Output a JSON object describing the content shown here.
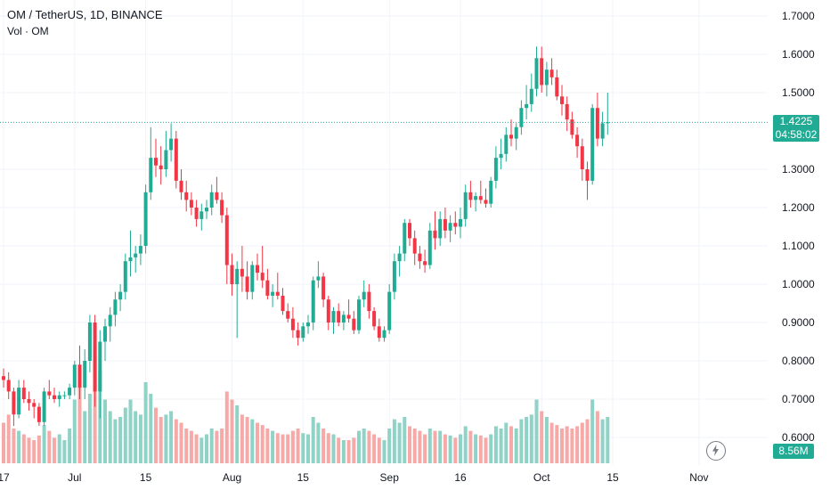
{
  "header": {
    "title": "OM / TetherUS, 1D, BINANCE",
    "volume_label": "Vol · OM"
  },
  "badges": {
    "last_price": "1.4225",
    "countdown": "04:58:02",
    "volume": "8.56M"
  },
  "colors": {
    "up": "#22ab94",
    "down": "#f23645",
    "vol_up": "#8fd2c6",
    "vol_down": "#f7a9a7"
  },
  "icons": {
    "replay": "lightning-bolt-icon"
  },
  "chart_data": {
    "type": "candlestick",
    "title": "OM / TetherUS, 1D, BINANCE",
    "ylim": [
      0.56,
      1.73
    ],
    "last_price": 1.4225,
    "y_ticks": [
      {
        "value": 1.7,
        "label": "1.7000"
      },
      {
        "value": 1.6,
        "label": "1.6000"
      },
      {
        "value": 1.5,
        "label": "1.5000"
      },
      {
        "value": 1.3,
        "label": "1.3000"
      },
      {
        "value": 1.2,
        "label": "1.2000"
      },
      {
        "value": 1.1,
        "label": "1.1000"
      },
      {
        "value": 1.0,
        "label": "1.0000"
      },
      {
        "value": 0.9,
        "label": "0.9000"
      },
      {
        "value": 0.8,
        "label": "0.8000"
      },
      {
        "value": 0.7,
        "label": "0.7000"
      },
      {
        "value": 0.6,
        "label": "0.6000"
      }
    ],
    "x_ticks": [
      {
        "index": 0,
        "label": "17"
      },
      {
        "index": 14,
        "label": "Jul"
      },
      {
        "index": 28,
        "label": "15"
      },
      {
        "index": 45,
        "label": "Aug"
      },
      {
        "index": 59,
        "label": "15"
      },
      {
        "index": 76,
        "label": "Sep"
      },
      {
        "index": 90,
        "label": "16"
      },
      {
        "index": 106,
        "label": "Oct"
      },
      {
        "index": 120,
        "label": "15"
      },
      {
        "index": 137,
        "label": "Nov"
      }
    ],
    "candles": [
      [
        0.76,
        0.78,
        0.73,
        0.75
      ],
      [
        0.75,
        0.77,
        0.7,
        0.72
      ],
      [
        0.72,
        0.73,
        0.63,
        0.66
      ],
      [
        0.66,
        0.75,
        0.65,
        0.73
      ],
      [
        0.73,
        0.75,
        0.69,
        0.7
      ],
      [
        0.7,
        0.72,
        0.67,
        0.69
      ],
      [
        0.69,
        0.7,
        0.65,
        0.68
      ],
      [
        0.68,
        0.69,
        0.63,
        0.64
      ],
      [
        0.64,
        0.73,
        0.63,
        0.72
      ],
      [
        0.72,
        0.75,
        0.7,
        0.71
      ],
      [
        0.71,
        0.73,
        0.69,
        0.7
      ],
      [
        0.7,
        0.72,
        0.68,
        0.71
      ],
      [
        0.71,
        0.72,
        0.7,
        0.71
      ],
      [
        0.71,
        0.74,
        0.7,
        0.73
      ],
      [
        0.73,
        0.8,
        0.71,
        0.79
      ],
      [
        0.79,
        0.84,
        0.7,
        0.73
      ],
      [
        0.73,
        0.83,
        0.7,
        0.8
      ],
      [
        0.8,
        0.92,
        0.77,
        0.9
      ],
      [
        0.9,
        0.92,
        0.68,
        0.72
      ],
      [
        0.72,
        0.88,
        0.65,
        0.85
      ],
      [
        0.85,
        0.91,
        0.8,
        0.89
      ],
      [
        0.89,
        0.94,
        0.85,
        0.92
      ],
      [
        0.92,
        0.98,
        0.89,
        0.96
      ],
      [
        0.96,
        1.0,
        0.93,
        0.98
      ],
      [
        0.98,
        1.08,
        0.96,
        1.06
      ],
      [
        1.06,
        1.14,
        1.02,
        1.07
      ],
      [
        1.07,
        1.1,
        1.03,
        1.08
      ],
      [
        1.08,
        1.13,
        1.05,
        1.1
      ],
      [
        1.1,
        1.26,
        1.08,
        1.24
      ],
      [
        1.24,
        1.41,
        1.22,
        1.33
      ],
      [
        1.33,
        1.38,
        1.28,
        1.31
      ],
      [
        1.31,
        1.36,
        1.26,
        1.3
      ],
      [
        1.3,
        1.4,
        1.28,
        1.35
      ],
      [
        1.35,
        1.42,
        1.32,
        1.38
      ],
      [
        1.38,
        1.4,
        1.25,
        1.27
      ],
      [
        1.27,
        1.3,
        1.22,
        1.24
      ],
      [
        1.24,
        1.27,
        1.19,
        1.22
      ],
      [
        1.22,
        1.24,
        1.18,
        1.2
      ],
      [
        1.2,
        1.22,
        1.15,
        1.17
      ],
      [
        1.17,
        1.21,
        1.14,
        1.19
      ],
      [
        1.19,
        1.22,
        1.17,
        1.2
      ],
      [
        1.2,
        1.26,
        1.18,
        1.24
      ],
      [
        1.24,
        1.28,
        1.21,
        1.22
      ],
      [
        1.22,
        1.24,
        1.16,
        1.18
      ],
      [
        1.18,
        1.2,
        1.0,
        1.05
      ],
      [
        1.05,
        1.08,
        0.97,
        1.0
      ],
      [
        1.0,
        1.06,
        0.86,
        1.04
      ],
      [
        1.04,
        1.1,
        0.98,
        1.02
      ],
      [
        1.02,
        1.06,
        0.96,
        0.98
      ],
      [
        0.98,
        1.06,
        0.96,
        1.05
      ],
      [
        1.05,
        1.08,
        1.01,
        1.03
      ],
      [
        1.03,
        1.1,
        0.99,
        1.01
      ],
      [
        1.01,
        1.04,
        0.96,
        0.97
      ],
      [
        0.97,
        1.0,
        0.94,
        0.98
      ],
      [
        0.98,
        1.03,
        0.96,
        0.97
      ],
      [
        0.97,
        0.99,
        0.92,
        0.93
      ],
      [
        0.93,
        0.95,
        0.9,
        0.91
      ],
      [
        0.91,
        0.94,
        0.86,
        0.88
      ],
      [
        0.88,
        0.9,
        0.84,
        0.86
      ],
      [
        0.86,
        0.9,
        0.85,
        0.89
      ],
      [
        0.89,
        0.92,
        0.87,
        0.9
      ],
      [
        0.9,
        1.02,
        0.88,
        1.01
      ],
      [
        1.01,
        1.06,
        0.99,
        1.02
      ],
      [
        1.02,
        1.03,
        0.94,
        0.96
      ],
      [
        0.96,
        0.97,
        0.88,
        0.9
      ],
      [
        0.9,
        0.94,
        0.87,
        0.93
      ],
      [
        0.93,
        0.95,
        0.89,
        0.9
      ],
      [
        0.9,
        0.93,
        0.88,
        0.92
      ],
      [
        0.92,
        0.96,
        0.9,
        0.91
      ],
      [
        0.91,
        0.93,
        0.87,
        0.88
      ],
      [
        0.88,
        0.97,
        0.87,
        0.96
      ],
      [
        0.96,
        1.01,
        0.94,
        0.98
      ],
      [
        0.98,
        1.0,
        0.91,
        0.93
      ],
      [
        0.93,
        0.94,
        0.88,
        0.89
      ],
      [
        0.89,
        0.91,
        0.85,
        0.86
      ],
      [
        0.86,
        0.89,
        0.85,
        0.88
      ],
      [
        0.88,
        1.0,
        0.87,
        0.98
      ],
      [
        0.98,
        1.08,
        0.96,
        1.06
      ],
      [
        1.06,
        1.1,
        1.02,
        1.08
      ],
      [
        1.08,
        1.17,
        1.06,
        1.16
      ],
      [
        1.16,
        1.17,
        1.1,
        1.12
      ],
      [
        1.12,
        1.14,
        1.05,
        1.08
      ],
      [
        1.08,
        1.1,
        1.04,
        1.06
      ],
      [
        1.06,
        1.09,
        1.03,
        1.05
      ],
      [
        1.05,
        1.16,
        1.04,
        1.14
      ],
      [
        1.14,
        1.19,
        1.09,
        1.12
      ],
      [
        1.12,
        1.19,
        1.1,
        1.17
      ],
      [
        1.17,
        1.2,
        1.12,
        1.14
      ],
      [
        1.14,
        1.18,
        1.11,
        1.16
      ],
      [
        1.16,
        1.19,
        1.13,
        1.15
      ],
      [
        1.15,
        1.2,
        1.12,
        1.17
      ],
      [
        1.17,
        1.26,
        1.15,
        1.24
      ],
      [
        1.24,
        1.27,
        1.2,
        1.22
      ],
      [
        1.22,
        1.24,
        1.19,
        1.23
      ],
      [
        1.23,
        1.27,
        1.21,
        1.22
      ],
      [
        1.22,
        1.25,
        1.2,
        1.21
      ],
      [
        1.21,
        1.28,
        1.2,
        1.27
      ],
      [
        1.27,
        1.36,
        1.25,
        1.33
      ],
      [
        1.33,
        1.38,
        1.3,
        1.34
      ],
      [
        1.34,
        1.41,
        1.32,
        1.39
      ],
      [
        1.39,
        1.43,
        1.36,
        1.38
      ],
      [
        1.38,
        1.42,
        1.35,
        1.41
      ],
      [
        1.41,
        1.48,
        1.39,
        1.46
      ],
      [
        1.46,
        1.52,
        1.43,
        1.47
      ],
      [
        1.47,
        1.55,
        1.45,
        1.51
      ],
      [
        1.51,
        1.62,
        1.49,
        1.59
      ],
      [
        1.59,
        1.62,
        1.5,
        1.52
      ],
      [
        1.52,
        1.58,
        1.49,
        1.56
      ],
      [
        1.56,
        1.59,
        1.52,
        1.54
      ],
      [
        1.54,
        1.56,
        1.48,
        1.49
      ],
      [
        1.49,
        1.52,
        1.44,
        1.47
      ],
      [
        1.47,
        1.49,
        1.4,
        1.43
      ],
      [
        1.43,
        1.45,
        1.38,
        1.39
      ],
      [
        1.39,
        1.41,
        1.33,
        1.36
      ],
      [
        1.36,
        1.38,
        1.27,
        1.3
      ],
      [
        1.3,
        1.32,
        1.22,
        1.27
      ],
      [
        1.27,
        1.47,
        1.26,
        1.46
      ],
      [
        1.46,
        1.5,
        1.36,
        1.38
      ],
      [
        1.38,
        1.45,
        1.36,
        1.42
      ],
      [
        1.42,
        1.5,
        1.39,
        1.4225
      ]
    ],
    "volume": [
      0.35,
      0.42,
      0.3,
      0.28,
      0.25,
      0.22,
      0.2,
      0.24,
      0.33,
      0.28,
      0.22,
      0.25,
      0.2,
      0.3,
      0.55,
      0.7,
      0.45,
      0.6,
      1.0,
      0.8,
      0.55,
      0.45,
      0.38,
      0.4,
      0.48,
      0.55,
      0.45,
      0.42,
      0.7,
      0.6,
      0.48,
      0.4,
      0.42,
      0.45,
      0.38,
      0.35,
      0.3,
      0.28,
      0.25,
      0.22,
      0.25,
      0.3,
      0.28,
      0.3,
      0.62,
      0.55,
      0.5,
      0.42,
      0.4,
      0.38,
      0.35,
      0.33,
      0.3,
      0.28,
      0.26,
      0.25,
      0.25,
      0.28,
      0.3,
      0.26,
      0.25,
      0.4,
      0.35,
      0.3,
      0.26,
      0.25,
      0.22,
      0.2,
      0.2,
      0.22,
      0.28,
      0.3,
      0.28,
      0.25,
      0.22,
      0.2,
      0.3,
      0.38,
      0.35,
      0.4,
      0.32,
      0.3,
      0.28,
      0.25,
      0.3,
      0.28,
      0.28,
      0.25,
      0.24,
      0.22,
      0.25,
      0.32,
      0.28,
      0.25,
      0.24,
      0.22,
      0.25,
      0.32,
      0.3,
      0.35,
      0.32,
      0.3,
      0.38,
      0.4,
      0.42,
      0.55,
      0.45,
      0.4,
      0.35,
      0.33,
      0.3,
      0.32,
      0.3,
      0.32,
      0.35,
      0.38,
      0.55,
      0.45,
      0.38,
      0.4
    ]
  }
}
